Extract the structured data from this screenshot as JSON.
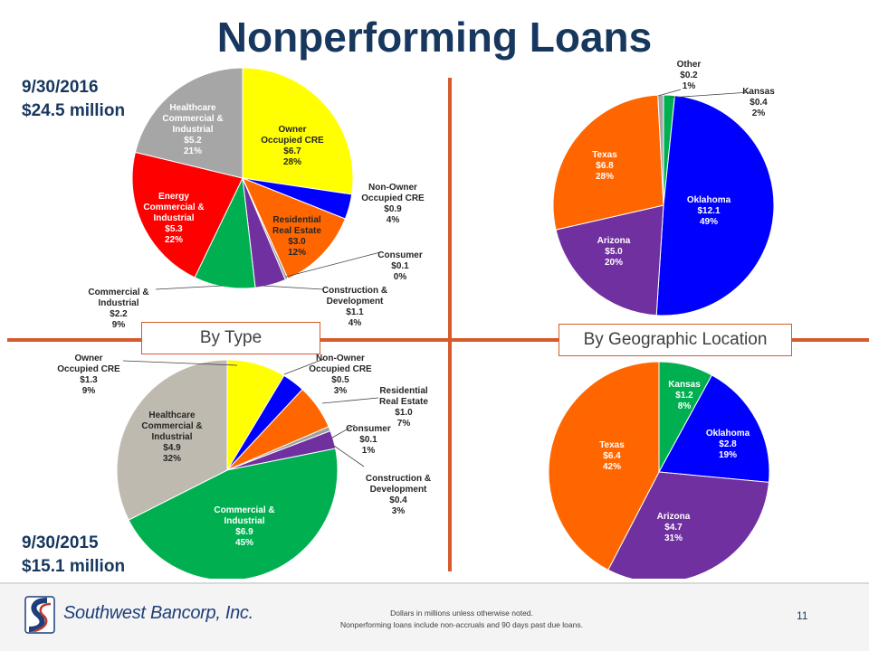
{
  "title": "Nonperforming Loans",
  "date_2016": "9/30/2016",
  "total_2016": "$24.5 million",
  "date_2015": "9/30/2015",
  "total_2015": "$15.1 million",
  "by_type_label": "By Type",
  "by_geo_label": "By Geographic Location",
  "footer": {
    "company": "Southwest Bancorp, Inc.",
    "note_1": "Dollars in millions unless otherwise noted.",
    "note_2": "Nonperforming loans include non-accruals and 90 days past due loans.",
    "page": "11"
  },
  "colors": {
    "title": "#17375e",
    "divider": "#d65a2b"
  },
  "chart_data": [
    {
      "type": "pie",
      "name": "type-2016",
      "slices": [
        {
          "label": "Owner Occupied CRE",
          "value_text": "$6.7",
          "pct_text": "28%",
          "value": 6.7,
          "color": "#ffff00"
        },
        {
          "label": "Non-Owner Occupied CRE",
          "value_text": "$0.9",
          "pct_text": "4%",
          "value": 0.9,
          "color": "#0000ff"
        },
        {
          "label": "Residential Real Estate",
          "value_text": "$3.0",
          "pct_text": "12%",
          "value": 3.0,
          "color": "#ff6600"
        },
        {
          "label": "Consumer",
          "value_text": "$0.1",
          "pct_text": "0%",
          "value": 0.1,
          "color": "#a0a0a0"
        },
        {
          "label": "Construction & Development",
          "value_text": "$1.1",
          "pct_text": "4%",
          "value": 1.1,
          "color": "#7030a0"
        },
        {
          "label": "Commercial & Industrial",
          "value_text": "$2.2",
          "pct_text": "9%",
          "value": 2.2,
          "color": "#00b050"
        },
        {
          "label": "Energy Commercial & Industrial",
          "value_text": "$5.3",
          "pct_text": "22%",
          "value": 5.3,
          "color": "#ff0000"
        },
        {
          "label": "Healthcare Commercial & Industrial",
          "value_text": "$5.2",
          "pct_text": "21%",
          "value": 5.2,
          "color": "#a6a6a6"
        }
      ]
    },
    {
      "type": "pie",
      "name": "geo-2016",
      "slices": [
        {
          "label": "Kansas",
          "value_text": "$0.4",
          "pct_text": "2%",
          "value": 0.4,
          "color": "#00b050"
        },
        {
          "label": "Oklahoma",
          "value_text": "$12.1",
          "pct_text": "49%",
          "value": 12.1,
          "color": "#0000ff"
        },
        {
          "label": "Arizona",
          "value_text": "$5.0",
          "pct_text": "20%",
          "value": 5.0,
          "color": "#7030a0"
        },
        {
          "label": "Texas",
          "value_text": "$6.8",
          "pct_text": "28%",
          "value": 6.8,
          "color": "#ff6600"
        },
        {
          "label": "Other",
          "value_text": "$0.2",
          "pct_text": "1%",
          "value": 0.2,
          "color": "#a6a6a6"
        }
      ]
    },
    {
      "type": "pie",
      "name": "type-2015",
      "slices": [
        {
          "label": "Owner Occupied CRE",
          "value_text": "$1.3",
          "pct_text": "9%",
          "value": 1.3,
          "color": "#ffff00"
        },
        {
          "label": "Non-Owner Occupied CRE",
          "value_text": "$0.5",
          "pct_text": "3%",
          "value": 0.5,
          "color": "#0000ff"
        },
        {
          "label": "Residential Real Estate",
          "value_text": "$1.0",
          "pct_text": "7%",
          "value": 1.0,
          "color": "#ff6600"
        },
        {
          "label": "Consumer",
          "value_text": "$0.1",
          "pct_text": "1%",
          "value": 0.1,
          "color": "#a0a0a0"
        },
        {
          "label": "Construction & Development",
          "value_text": "$0.4",
          "pct_text": "3%",
          "value": 0.4,
          "color": "#7030a0"
        },
        {
          "label": "Commercial & Industrial",
          "value_text": "$6.9",
          "pct_text": "45%",
          "value": 6.9,
          "color": "#00b050"
        },
        {
          "label": "Healthcare Commercial & Industrial",
          "value_text": "$4.9",
          "pct_text": "32%",
          "value": 4.9,
          "color": "#bfbab0"
        }
      ]
    },
    {
      "type": "pie",
      "name": "geo-2015",
      "slices": [
        {
          "label": "Kansas",
          "value_text": "$1.2",
          "pct_text": "8%",
          "value": 1.2,
          "color": "#00b050"
        },
        {
          "label": "Oklahoma",
          "value_text": "$2.8",
          "pct_text": "19%",
          "value": 2.8,
          "color": "#0000ff"
        },
        {
          "label": "Arizona",
          "value_text": "$4.7",
          "pct_text": "31%",
          "value": 4.7,
          "color": "#7030a0"
        },
        {
          "label": "Texas",
          "value_text": "$6.4",
          "pct_text": "42%",
          "value": 6.4,
          "color": "#ff6600"
        }
      ]
    }
  ]
}
